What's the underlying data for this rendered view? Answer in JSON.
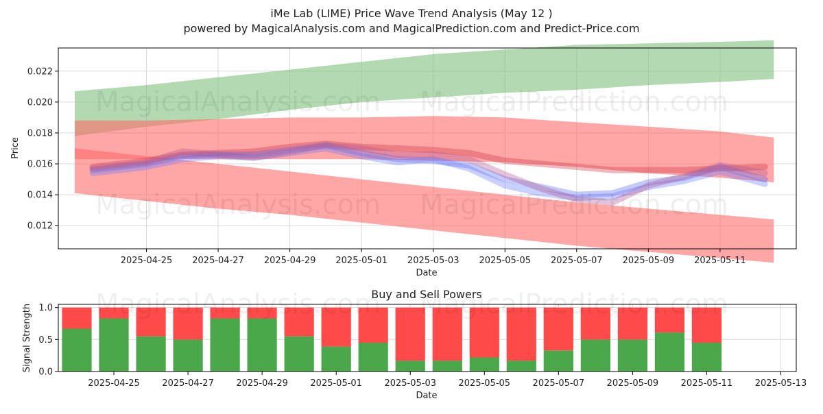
{
  "chart_data": [
    {
      "type": "area",
      "title": "iMe Lab (LIME) Price Wave Trend Analysis (May 12 )",
      "subtitle": "powered by MagicalAnalysis.com and MagicalPrediction.com and Predict-Price.com",
      "xlabel": "Date",
      "ylabel": "Price",
      "xlim": [
        "2025-04-22T13:00",
        "2025-05-13T03:00"
      ],
      "ylim": [
        0.0105,
        0.0235
      ],
      "x_ticks": [
        "2025-04-25",
        "2025-04-27",
        "2025-04-29",
        "2025-05-01",
        "2025-05-03",
        "2025-05-05",
        "2025-05-07",
        "2025-05-09",
        "2025-05-11"
      ],
      "y_ticks": [
        "0.012",
        "0.014",
        "0.016",
        "0.018",
        "0.020",
        "0.022"
      ],
      "grid": true,
      "bands": [
        {
          "color": "#7fbf7b",
          "x": [
            "2025-04-23",
            "2025-04-25",
            "2025-04-27",
            "2025-04-29",
            "2025-05-01",
            "2025-05-03",
            "2025-05-05",
            "2025-05-07",
            "2025-05-09",
            "2025-05-11",
            "2025-05-12T12:00"
          ],
          "upper": [
            0.0207,
            0.0211,
            0.0216,
            0.0221,
            0.0226,
            0.0231,
            0.0234,
            0.0237,
            0.0238,
            0.0239,
            0.024
          ],
          "lower": [
            0.0178,
            0.0184,
            0.0189,
            0.0195,
            0.02,
            0.0203,
            0.0206,
            0.0208,
            0.0211,
            0.0213,
            0.0215
          ]
        },
        {
          "color": "#ff6b6b",
          "x": [
            "2025-04-23",
            "2025-04-25",
            "2025-04-27",
            "2025-04-29",
            "2025-05-01",
            "2025-05-03",
            "2025-05-05",
            "2025-05-07",
            "2025-05-09",
            "2025-05-11",
            "2025-05-12T12:00"
          ],
          "upper": [
            0.0188,
            0.0188,
            0.0189,
            0.019,
            0.019,
            0.0191,
            0.019,
            0.0187,
            0.0184,
            0.0181,
            0.0177
          ],
          "lower": [
            0.0163,
            0.0163,
            0.0163,
            0.0163,
            0.0163,
            0.0162,
            0.0161,
            0.0158,
            0.0154,
            0.0151,
            0.0148
          ]
        },
        {
          "color": "#ff6b6b",
          "x": [
            "2025-04-23",
            "2025-04-25",
            "2025-04-27",
            "2025-04-29",
            "2025-05-01",
            "2025-05-03",
            "2025-05-05",
            "2025-05-07",
            "2025-05-09",
            "2025-05-11",
            "2025-05-12T12:00"
          ],
          "upper": [
            0.017,
            0.0165,
            0.016,
            0.0155,
            0.015,
            0.0145,
            0.014,
            0.0135,
            0.0131,
            0.0127,
            0.0124
          ],
          "lower": [
            0.0141,
            0.0136,
            0.0131,
            0.0127,
            0.0122,
            0.0117,
            0.0112,
            0.0107,
            0.0103,
            0.0099,
            0.0096
          ]
        }
      ],
      "series": [
        {
          "color": "#cc3344",
          "x": [
            "2025-04-23T12:00",
            "2025-04-25",
            "2025-04-26",
            "2025-04-27",
            "2025-04-28",
            "2025-04-29",
            "2025-04-30",
            "2025-05-01",
            "2025-05-02",
            "2025-05-03",
            "2025-05-04",
            "2025-05-05",
            "2025-05-06",
            "2025-05-07",
            "2025-05-08",
            "2025-05-09",
            "2025-05-10",
            "2025-05-11",
            "2025-05-12T06:00"
          ],
          "values": [
            0.0158,
            0.0162,
            0.0166,
            0.0167,
            0.0168,
            0.0171,
            0.0173,
            0.0171,
            0.017,
            0.0169,
            0.0167,
            0.0162,
            0.016,
            0.0158,
            0.0156,
            0.0156,
            0.0156,
            0.0157,
            0.0158
          ]
        },
        {
          "color": "#5566ee",
          "x": [
            "2025-04-23T12:00",
            "2025-04-25",
            "2025-04-26",
            "2025-04-27",
            "2025-04-28",
            "2025-04-29",
            "2025-04-30",
            "2025-05-01",
            "2025-05-02",
            "2025-05-03",
            "2025-05-04",
            "2025-05-05",
            "2025-05-06",
            "2025-05-07",
            "2025-05-08",
            "2025-05-09",
            "2025-05-10",
            "2025-05-11",
            "2025-05-12T06:00"
          ],
          "values": [
            0.0156,
            0.016,
            0.0165,
            0.0166,
            0.0166,
            0.0169,
            0.0172,
            0.0167,
            0.0163,
            0.0162,
            0.0159,
            0.015,
            0.0145,
            0.014,
            0.0141,
            0.0148,
            0.0151,
            0.0158,
            0.015
          ]
        },
        {
          "color": "#6677ff",
          "x": [
            "2025-04-23T12:00",
            "2025-04-25",
            "2025-04-26",
            "2025-04-27",
            "2025-04-28",
            "2025-04-29",
            "2025-04-30",
            "2025-05-01",
            "2025-05-02",
            "2025-05-03",
            "2025-05-04",
            "2025-05-05",
            "2025-05-06",
            "2025-05-07",
            "2025-05-08",
            "2025-05-09",
            "2025-05-10",
            "2025-05-11",
            "2025-05-12T06:00"
          ],
          "values": [
            0.0154,
            0.0158,
            0.0163,
            0.0165,
            0.0164,
            0.0167,
            0.017,
            0.0165,
            0.0161,
            0.0163,
            0.0157,
            0.0146,
            0.0141,
            0.0138,
            0.0139,
            0.0145,
            0.0149,
            0.0155,
            0.0147
          ]
        },
        {
          "color": "#b05590",
          "x": [
            "2025-04-23T12:00",
            "2025-04-25",
            "2025-04-26",
            "2025-04-27",
            "2025-04-28",
            "2025-04-29",
            "2025-04-30",
            "2025-05-01",
            "2025-05-02",
            "2025-05-03",
            "2025-05-04",
            "2025-05-05",
            "2025-05-06",
            "2025-05-07",
            "2025-05-08",
            "2025-05-09",
            "2025-05-10",
            "2025-05-11",
            "2025-05-12T06:00"
          ],
          "values": [
            0.0157,
            0.0161,
            0.0168,
            0.0166,
            0.0164,
            0.0168,
            0.0172,
            0.017,
            0.0166,
            0.0166,
            0.0163,
            0.0153,
            0.0144,
            0.0137,
            0.0135,
            0.0146,
            0.0152,
            0.0159,
            0.0154
          ]
        }
      ]
    },
    {
      "type": "bar",
      "title": "Buy and Sell Powers",
      "xlabel": "Date",
      "ylabel": "Signal Strength",
      "xlim": [
        "2025-04-23T12:00",
        "2025-05-13T10:00"
      ],
      "ylim": [
        0,
        1.05
      ],
      "x_ticks": [
        "2025-04-25",
        "2025-04-27",
        "2025-04-29",
        "2025-05-01",
        "2025-05-03",
        "2025-05-05",
        "2025-05-07",
        "2025-05-09",
        "2025-05-11",
        "2025-05-13"
      ],
      "y_ticks": [
        "0.0",
        "0.5",
        "1.0"
      ],
      "grid": true,
      "categories": [
        "2025-04-24",
        "2025-04-25",
        "2025-04-26",
        "2025-04-27",
        "2025-04-28",
        "2025-04-29",
        "2025-04-30",
        "2025-05-01",
        "2025-05-02",
        "2025-05-03",
        "2025-05-04",
        "2025-05-05",
        "2025-05-06",
        "2025-05-07",
        "2025-05-08",
        "2025-05-09",
        "2025-05-10",
        "2025-05-11",
        "2025-05-12"
      ],
      "series": [
        {
          "color": "#4aa84a",
          "values": [
            0.67,
            0.83,
            0.55,
            0.5,
            0.83,
            0.83,
            0.55,
            0.39,
            0.45,
            0.17,
            0.17,
            0.22,
            0.17,
            0.33,
            0.5,
            0.5,
            0.61,
            0.45,
            0.0
          ]
        },
        {
          "color": "#ff4a4a",
          "values": [
            0.33,
            0.17,
            0.45,
            0.5,
            0.17,
            0.17,
            0.45,
            0.61,
            0.55,
            0.83,
            0.83,
            0.78,
            0.83,
            0.67,
            0.5,
            0.5,
            0.39,
            0.55,
            0.0
          ]
        }
      ]
    }
  ],
  "watermarks": [
    "MagicalAnalysis.com",
    "MagicalPrediction.com"
  ],
  "colors": {
    "axis": "#000000",
    "grid": "#d9d9d9",
    "text": "#222222"
  }
}
